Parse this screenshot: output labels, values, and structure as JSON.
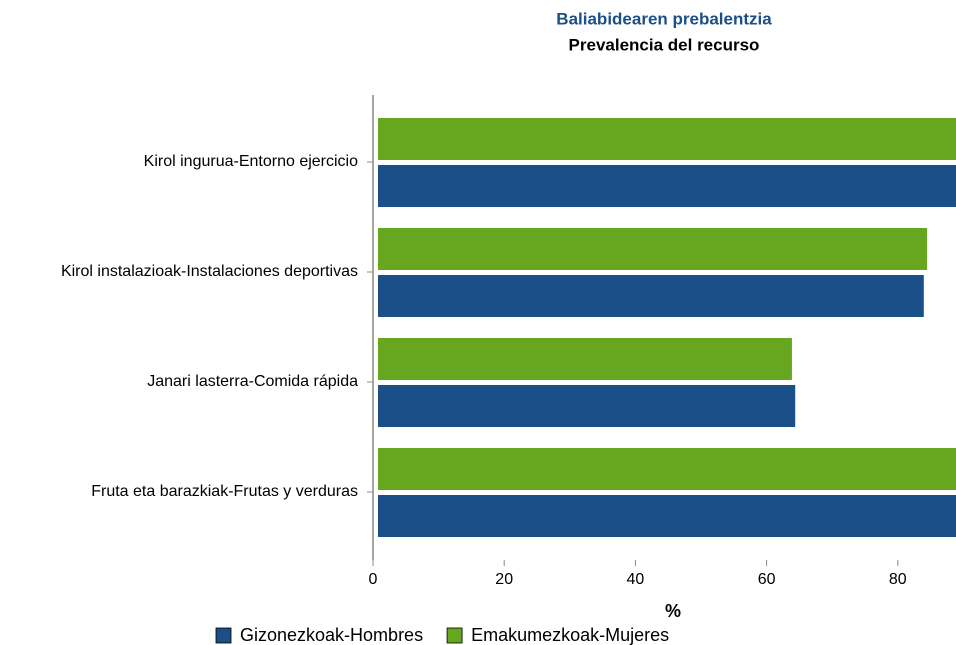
{
  "chart_data": {
    "type": "hbar",
    "title": "Baliabidearen prebalentzia",
    "subtitle": "Prevalencia del recurso",
    "xlabel": "%",
    "categories": [
      "Kirol ingurua-Entorno ejercicio",
      "Kirol instalazioak-Instalaciones deportivas",
      "Janari lasterra-Comida rápida",
      "Fruta eta barazkiak-Frutas y verduras"
    ],
    "series": [
      {
        "name": "Gizonezkoak-Hombres",
        "color": "#1b4f87",
        "values": [
          92,
          83.2,
          63.6,
          93
        ]
      },
      {
        "name": "Emakumezkoak-Mujeres",
        "color": "#67a61f",
        "values": [
          91,
          83.7,
          63.1,
          94
        ]
      }
    ],
    "xlim": [
      0,
      100
    ],
    "xticks": [
      0,
      20,
      40,
      60,
      80
    ],
    "legend": "bottom"
  }
}
